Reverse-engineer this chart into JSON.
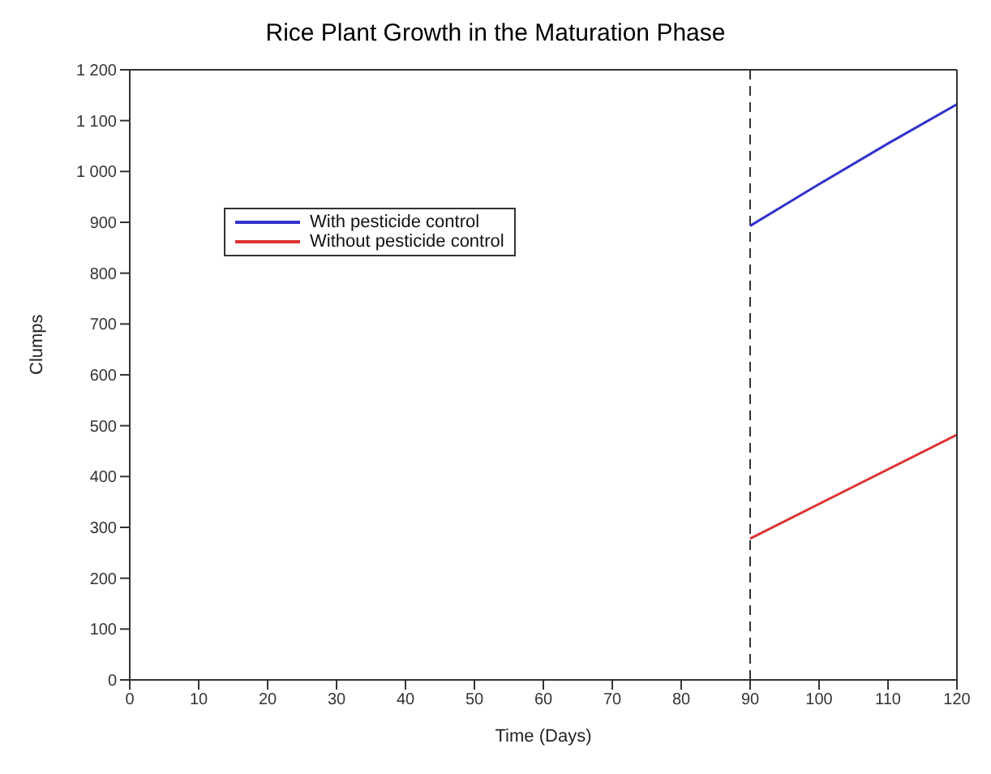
{
  "chart_data": {
    "type": "line",
    "title": "Rice Plant Growth in the Maturation Phase",
    "xlabel": "Time (Days)",
    "ylabel": "Clumps",
    "series": [
      {
        "name": "With pesticide control",
        "color": "#3333cc",
        "x": [
          90,
          100,
          110,
          120
        ],
        "values": [
          893,
          975,
          1055,
          1132
        ]
      },
      {
        "name": "Without pesticide control",
        "color": "#dd3333",
        "x": [
          90,
          120
        ],
        "values": [
          278,
          482
        ]
      }
    ],
    "xlim": [
      0,
      120
    ],
    "xticks": [
      0,
      10,
      20,
      30,
      40,
      50,
      60,
      70,
      80,
      90,
      100,
      110,
      120
    ],
    "ylim": [
      0,
      1200
    ],
    "yticks": [
      {
        "value": 0,
        "label": "0"
      },
      {
        "value": 100,
        "label": "100"
      },
      {
        "value": 200,
        "label": "200"
      },
      {
        "value": 300,
        "label": "300"
      },
      {
        "value": 400,
        "label": "400"
      },
      {
        "value": 500,
        "label": "500"
      },
      {
        "value": 600,
        "label": "600"
      },
      {
        "value": 700,
        "label": "700"
      },
      {
        "value": 800,
        "label": "800"
      },
      {
        "value": 900,
        "label": "900"
      },
      {
        "value": 1000,
        "label": "1 000"
      },
      {
        "value": 1100,
        "label": "1 100"
      },
      {
        "value": 1200,
        "label": "1 200"
      }
    ],
    "ref_lines": [
      {
        "axis": "x",
        "value": 90,
        "color": "#333333",
        "line_style": "dashed"
      }
    ],
    "grid": false,
    "legend": "top left",
    "marker": "none",
    "line_style": "solid"
  }
}
